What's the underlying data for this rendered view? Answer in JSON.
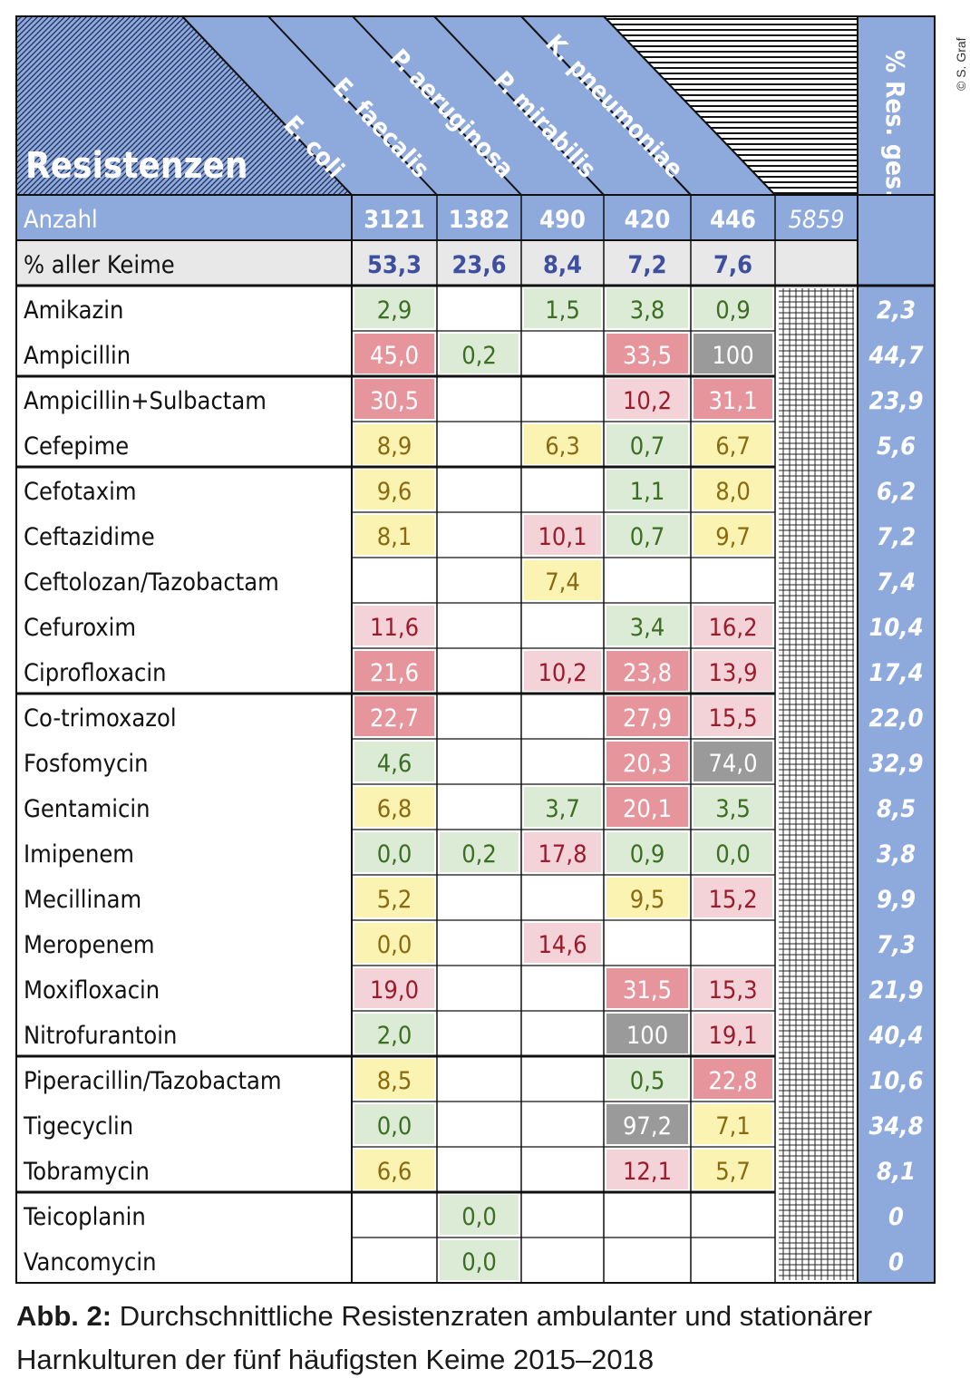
{
  "table": {
    "title": "Resistenzen",
    "organisms": [
      "E. coli",
      "E. faecalis",
      "P. aeruginosa",
      "P. mirabilis",
      "K. pneumoniae"
    ],
    "total_header": "% Res. ges.",
    "count_row": {
      "label": "Anzahl",
      "values": [
        "3121",
        "1382",
        "490",
        "420",
        "446"
      ],
      "total": "5859"
    },
    "percent_row": {
      "label": "% aller Keime",
      "values": [
        "53,3",
        "23,6",
        "8,4",
        "7,2",
        "7,6"
      ]
    }
  },
  "chart_data": {
    "type": "table",
    "title": "Resistenzen",
    "columns": [
      "E. coli",
      "E. faecalis",
      "P. aeruginosa",
      "P. mirabilis",
      "K. pneumoniae"
    ],
    "total_column": "% Res. ges.",
    "rows": [
      {
        "name": "Amikazin",
        "values": [
          "2,9",
          "",
          "1,5",
          "3,8",
          "0,9"
        ],
        "levels": [
          "low",
          "",
          "low",
          "low",
          "low"
        ],
        "total": "2,3"
      },
      {
        "name": "Ampicillin",
        "values": [
          "45,0",
          "0,2",
          "",
          "33,5",
          "100"
        ],
        "levels": [
          "high",
          "low",
          "",
          "high",
          "intrinsic"
        ],
        "total": "44,7"
      },
      {
        "name": "Ampicillin+Sulbactam",
        "values": [
          "30,5",
          "",
          "",
          "10,2",
          "31,1"
        ],
        "levels": [
          "high",
          "",
          "",
          "moderate",
          "high"
        ],
        "total": "23,9"
      },
      {
        "name": "Cefepime",
        "values": [
          "8,9",
          "",
          "6,3",
          "0,7",
          "6,7"
        ],
        "levels": [
          "medium",
          "",
          "medium",
          "low",
          "medium"
        ],
        "total": "5,6"
      },
      {
        "name": "Cefotaxim",
        "values": [
          "9,6",
          "",
          "",
          "1,1",
          "8,0"
        ],
        "levels": [
          "medium",
          "",
          "",
          "low",
          "medium"
        ],
        "total": "6,2"
      },
      {
        "name": "Ceftazidime",
        "values": [
          "8,1",
          "",
          "10,1",
          "0,7",
          "9,7"
        ],
        "levels": [
          "medium",
          "",
          "moderate",
          "low",
          "medium"
        ],
        "total": "7,2"
      },
      {
        "name": "Ceftolozan/Tazobactam",
        "values": [
          "",
          "",
          "7,4",
          "",
          ""
        ],
        "levels": [
          "",
          "",
          "medium",
          "",
          ""
        ],
        "total": "7,4"
      },
      {
        "name": "Cefuroxim",
        "values": [
          "11,6",
          "",
          "",
          "3,4",
          "16,2"
        ],
        "levels": [
          "moderate",
          "",
          "",
          "low",
          "moderate"
        ],
        "total": "10,4"
      },
      {
        "name": "Ciprofloxacin",
        "values": [
          "21,6",
          "",
          "10,2",
          "23,8",
          "13,9"
        ],
        "levels": [
          "high",
          "",
          "moderate",
          "high",
          "moderate"
        ],
        "total": "17,4"
      },
      {
        "name": "Co-trimoxazol",
        "values": [
          "22,7",
          "",
          "",
          "27,9",
          "15,5"
        ],
        "levels": [
          "high",
          "",
          "",
          "high",
          "moderate"
        ],
        "total": "22,0"
      },
      {
        "name": "Fosfomycin",
        "values": [
          "4,6",
          "",
          "",
          "20,3",
          "74,0"
        ],
        "levels": [
          "low",
          "",
          "",
          "high",
          "intrinsic"
        ],
        "total": "32,9"
      },
      {
        "name": "Gentamicin",
        "values": [
          "6,8",
          "",
          "3,7",
          "20,1",
          "3,5"
        ],
        "levels": [
          "medium",
          "",
          "low",
          "high",
          "low"
        ],
        "total": "8,5"
      },
      {
        "name": "Imipenem",
        "values": [
          "0,0",
          "0,2",
          "17,8",
          "0,9",
          "0,0"
        ],
        "levels": [
          "low",
          "low",
          "moderate",
          "low",
          "low"
        ],
        "total": "3,8"
      },
      {
        "name": "Mecillinam",
        "values": [
          "5,2",
          "",
          "",
          "9,5",
          "15,2"
        ],
        "levels": [
          "medium",
          "",
          "",
          "medium",
          "moderate"
        ],
        "total": "9,9"
      },
      {
        "name": "Meropenem",
        "values": [
          "0,0",
          "",
          "14,6",
          "",
          ""
        ],
        "levels": [
          "medium",
          "",
          "moderate",
          "",
          ""
        ],
        "total": "7,3"
      },
      {
        "name": "Moxifloxacin",
        "values": [
          "19,0",
          "",
          "",
          "31,5",
          "15,3"
        ],
        "levels": [
          "moderate",
          "",
          "",
          "high",
          "moderate"
        ],
        "total": "21,9"
      },
      {
        "name": "Nitrofurantoin",
        "values": [
          "2,0",
          "",
          "",
          "100",
          "19,1"
        ],
        "levels": [
          "low",
          "",
          "",
          "intrinsic",
          "moderate"
        ],
        "total": "40,4"
      },
      {
        "name": "Piperacillin/Tazobactam",
        "values": [
          "8,5",
          "",
          "",
          "0,5",
          "22,8"
        ],
        "levels": [
          "medium",
          "",
          "",
          "low",
          "high"
        ],
        "total": "10,6"
      },
      {
        "name": "Tigecyclin",
        "values": [
          "0,0",
          "",
          "",
          "97,2",
          "7,1"
        ],
        "levels": [
          "low",
          "",
          "",
          "intrinsic",
          "medium"
        ],
        "total": "34,8"
      },
      {
        "name": "Tobramycin",
        "values": [
          "6,6",
          "",
          "",
          "12,1",
          "5,7"
        ],
        "levels": [
          "medium",
          "",
          "",
          "moderate",
          "medium"
        ],
        "total": "8,1"
      },
      {
        "name": "Teicoplanin",
        "values": [
          "",
          "0,0",
          "",
          "",
          ""
        ],
        "levels": [
          "",
          "low",
          "",
          "",
          ""
        ],
        "total": "0"
      },
      {
        "name": "Vancomycin",
        "values": [
          "",
          "0,0",
          "",
          "",
          ""
        ],
        "levels": [
          "",
          "low",
          "",
          "",
          ""
        ],
        "total": "0"
      }
    ]
  },
  "colors": {
    "header_blue": "#8ea9db",
    "count_text": "#3d4f9e",
    "gray_row": "#e8e8e8",
    "total_text": "#ffffff",
    "low": {
      "fill": "#dcebd5",
      "text": "#3b6e22"
    },
    "medium": {
      "fill": "#fbf3b1",
      "text": "#8a6a10"
    },
    "moderate": {
      "fill": "#f4d3d8",
      "text": "#9b1b2c"
    },
    "high": {
      "fill": "#e7959d",
      "text": "#ffffff"
    },
    "intrinsic": {
      "fill": "#9a9a9a",
      "text": "#ffffff"
    }
  },
  "caption": {
    "label": "Abb. 2:",
    "text": "Durchschnittliche Resistenzraten ambulanter und stationärer Harnkulturen der fünf häufigsten Keime 2015–2018"
  },
  "copyright": "© S. Graf"
}
